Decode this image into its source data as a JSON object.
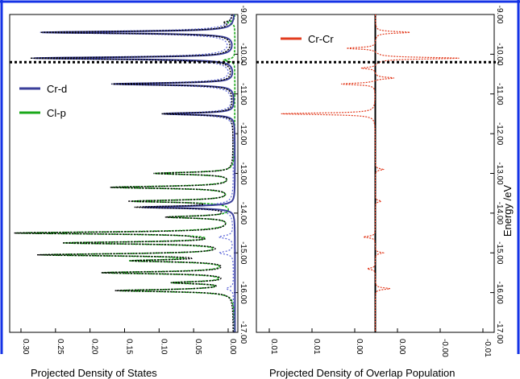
{
  "colors": {
    "frame": "#1533e6",
    "cr_d": "#3b3f9a",
    "cr_d_dotted": "#5a64d8",
    "cl_p": "#1aa81a",
    "cr_cr": "#e23b1e",
    "total": "#000000"
  },
  "chart_data": [
    {
      "type": "line",
      "xlabel": "Projected Density of States",
      "ylabel": "Energy /eV",
      "x_ticks": [
        "0.30",
        "0.25",
        "0.20",
        "0.15",
        "0.10",
        "0.05",
        "0.00"
      ],
      "y_ticks": [
        "-9.00",
        "-10.00",
        "-11.00",
        "-12.00",
        "-13.00",
        "-14.00",
        "-15.00",
        "-16.00",
        "-17.00"
      ],
      "xlim": [
        0.32,
        0.0
      ],
      "ylim": [
        -9.0,
        -17.0
      ],
      "fermi_level": -10.2,
      "legend": [
        "Cr-d",
        "Cl-p"
      ],
      "series": [
        {
          "name": "Cr-d",
          "peaks": [
            [
              -9.45,
              0.27
            ],
            [
              -10.1,
              0.28
            ],
            [
              -10.75,
              0.17
            ],
            [
              -11.5,
              0.1
            ],
            [
              -13.85,
              0.13
            ],
            [
              -14.6,
              0.02
            ],
            [
              -15.0,
              0.02
            ],
            [
              -15.9,
              0.01
            ]
          ]
        },
        {
          "name": "Cl-p",
          "peaks": [
            [
              -9.2,
              0.01
            ],
            [
              -10.15,
              0.015
            ],
            [
              -13.0,
              0.11
            ],
            [
              -13.35,
              0.17
            ],
            [
              -13.7,
              0.14
            ],
            [
              -14.1,
              0.09
            ],
            [
              -14.5,
              0.3
            ],
            [
              -14.75,
              0.23
            ],
            [
              -15.05,
              0.26
            ],
            [
              -15.2,
              0.13
            ],
            [
              -15.5,
              0.18
            ],
            [
              -15.75,
              0.08
            ],
            [
              -15.95,
              0.16
            ]
          ]
        }
      ]
    },
    {
      "type": "line",
      "xlabel": "Projected Density of Overlap Population",
      "x_ticks": [
        "0.01",
        "0.01",
        "0.00",
        "0.00",
        "-0.00",
        "-0.01"
      ],
      "y_ticks": [
        "-9.00",
        "-10.00",
        "-11.00",
        "-12.00",
        "-13.00",
        "-14.00",
        "-15.00",
        "-16.00",
        "-17.00"
      ],
      "xlim": [
        0.012,
        -0.012
      ],
      "ylim": [
        -9.0,
        -17.0
      ],
      "fermi_level": -10.2,
      "legend": [
        "Cr-Cr"
      ],
      "series": [
        {
          "name": "Cr-Cr",
          "peaks": [
            [
              -9.45,
              -0.0035
            ],
            [
              -9.85,
              0.003
            ],
            [
              -10.1,
              -0.0085
            ],
            [
              -10.35,
              0.0015
            ],
            [
              -10.6,
              -0.002
            ],
            [
              -10.75,
              0.0035
            ],
            [
              -11.5,
              0.0095
            ],
            [
              -12.9,
              -0.0008
            ],
            [
              -13.7,
              -0.0006
            ],
            [
              -14.6,
              0.0012
            ],
            [
              -15.0,
              -0.0008
            ],
            [
              -15.4,
              0.0008
            ],
            [
              -15.9,
              -0.0015
            ]
          ]
        }
      ]
    }
  ]
}
